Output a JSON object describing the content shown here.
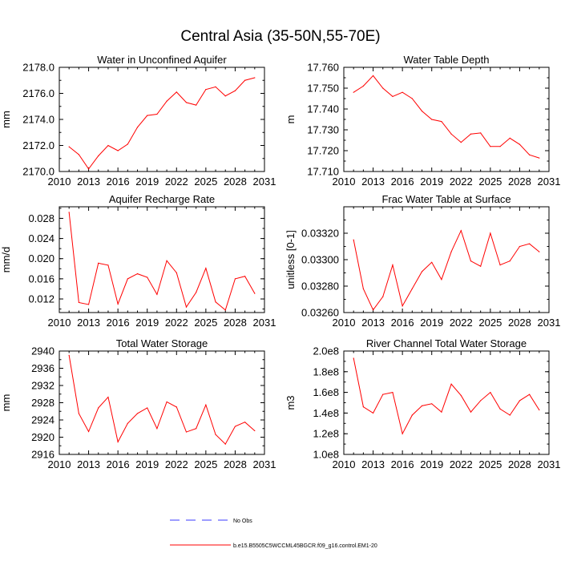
{
  "suptitle": "Central Asia (35-50N,55-70E)",
  "legend": [
    {
      "label": "No Obs",
      "style": "dashed",
      "color": "#3b3bff"
    },
    {
      "label": "b.e15.B5505C5WCCML45BGCR.f09_g16.control.EM1-20",
      "style": "solid",
      "color": "#ff0000"
    }
  ],
  "chart_data": [
    {
      "type": "line",
      "title": "Water in Unconfined Aquifer",
      "ylabel": "mm",
      "xlim": [
        2010,
        2031
      ],
      "xticks": [
        "2010",
        "2013",
        "2016",
        "2019",
        "2022",
        "2025",
        "2028",
        "2031"
      ],
      "ylim": [
        2170,
        2178
      ],
      "yticks": [
        "2170.0",
        "2172.0",
        "2174.0",
        "2176.0",
        "2178.0"
      ],
      "x": [
        2011,
        2012,
        2013,
        2014,
        2015,
        2016,
        2017,
        2018,
        2019,
        2020,
        2021,
        2022,
        2023,
        2024,
        2025,
        2026,
        2027,
        2028,
        2029,
        2030
      ],
      "series": [
        {
          "color": "#ff0000",
          "values": [
            2171.9,
            2171.3,
            2170.2,
            2171.2,
            2172.0,
            2171.6,
            2172.1,
            2173.4,
            2174.3,
            2174.4,
            2175.4,
            2176.1,
            2175.3,
            2175.1,
            2176.3,
            2176.5,
            2175.8,
            2176.2,
            2177.0,
            2177.2
          ]
        }
      ]
    },
    {
      "type": "line",
      "title": "Water Table Depth",
      "ylabel": "m",
      "xlim": [
        2010,
        2031
      ],
      "xticks": [
        "2010",
        "2013",
        "2016",
        "2019",
        "2022",
        "2025",
        "2028",
        "2031"
      ],
      "ylim": [
        17.71,
        17.76
      ],
      "yticks": [
        "17.710",
        "17.720",
        "17.730",
        "17.740",
        "17.750",
        "17.760"
      ],
      "x": [
        2011,
        2012,
        2013,
        2014,
        2015,
        2016,
        2017,
        2018,
        2019,
        2020,
        2021,
        2022,
        2023,
        2024,
        2025,
        2026,
        2027,
        2028,
        2029,
        2030
      ],
      "series": [
        {
          "color": "#ff0000",
          "values": [
            17.748,
            17.751,
            17.756,
            17.75,
            17.746,
            17.748,
            17.745,
            17.739,
            17.735,
            17.734,
            17.728,
            17.724,
            17.728,
            17.7285,
            17.722,
            17.722,
            17.726,
            17.723,
            17.718,
            17.7165
          ]
        }
      ]
    },
    {
      "type": "line",
      "title": "Aquifer Recharge Rate",
      "ylabel": "mm/d",
      "xlim": [
        2010,
        2031
      ],
      "xticks": [
        "2010",
        "2013",
        "2016",
        "2019",
        "2022",
        "2025",
        "2028",
        "2031"
      ],
      "ylim": [
        0.0093,
        0.0303
      ],
      "yticks": [
        "0.012",
        "0.016",
        "0.020",
        "0.024",
        "0.028"
      ],
      "ytick_values": [
        0.012,
        0.016,
        0.02,
        0.024,
        0.028
      ],
      "x": [
        2011,
        2012,
        2013,
        2014,
        2015,
        2016,
        2017,
        2018,
        2019,
        2020,
        2021,
        2022,
        2023,
        2024,
        2025,
        2026,
        2027,
        2028,
        2029,
        2030
      ],
      "series": [
        {
          "color": "#ff0000",
          "values": [
            0.0292,
            0.0113,
            0.0109,
            0.0191,
            0.0187,
            0.011,
            0.016,
            0.017,
            0.0163,
            0.0129,
            0.0196,
            0.0172,
            0.0104,
            0.0133,
            0.0181,
            0.0114,
            0.0098,
            0.016,
            0.0165,
            0.0131
          ]
        }
      ]
    },
    {
      "type": "line",
      "title": "Frac Water Table at Surface",
      "ylabel": "unitless [0-1]",
      "xlim": [
        2010,
        2031
      ],
      "xticks": [
        "2010",
        "2013",
        "2016",
        "2019",
        "2022",
        "2025",
        "2028",
        "2031"
      ],
      "ylim": [
        0.0326,
        0.0334
      ],
      "yticks": [
        "0.03260",
        "0.03280",
        "0.03300",
        "0.03320"
      ],
      "ytick_values": [
        0.0326,
        0.0328,
        0.033,
        0.0332
      ],
      "x": [
        2011,
        2012,
        2013,
        2014,
        2015,
        2016,
        2017,
        2018,
        2019,
        2020,
        2021,
        2022,
        2023,
        2024,
        2025,
        2026,
        2027,
        2028,
        2029,
        2030
      ],
      "series": [
        {
          "color": "#ff0000",
          "values": [
            0.03315,
            0.03278,
            0.03262,
            0.03272,
            0.03296,
            0.03265,
            0.03278,
            0.03291,
            0.03298,
            0.03285,
            0.03306,
            0.03322,
            0.03299,
            0.03295,
            0.0332,
            0.03296,
            0.03299,
            0.0331,
            0.03312,
            0.03306
          ]
        }
      ]
    },
    {
      "type": "line",
      "title": "Total Water Storage",
      "ylabel": "mm",
      "xlim": [
        2010,
        2031
      ],
      "xticks": [
        "2010",
        "2013",
        "2016",
        "2019",
        "2022",
        "2025",
        "2028",
        "2031"
      ],
      "ylim": [
        2916,
        2940
      ],
      "yticks": [
        "2916",
        "2920",
        "2924",
        "2928",
        "2932",
        "2936",
        "2940"
      ],
      "x": [
        2011,
        2012,
        2013,
        2014,
        2015,
        2016,
        2017,
        2018,
        2019,
        2020,
        2021,
        2022,
        2023,
        2024,
        2025,
        2026,
        2027,
        2028,
        2029,
        2030
      ],
      "series": [
        {
          "color": "#ff0000",
          "values": [
            2939.0,
            2925.5,
            2921.3,
            2926.8,
            2929.3,
            2918.9,
            2923.2,
            2925.5,
            2926.8,
            2922.0,
            2928.2,
            2927.0,
            2921.2,
            2922.0,
            2927.5,
            2920.6,
            2918.4,
            2922.5,
            2923.5,
            2921.5
          ]
        }
      ]
    },
    {
      "type": "line",
      "title": "River Channel Total Water Storage",
      "ylabel": "m3",
      "xlim": [
        2010,
        2031
      ],
      "xticks": [
        "2010",
        "2013",
        "2016",
        "2019",
        "2022",
        "2025",
        "2028",
        "2031"
      ],
      "ylim": [
        100000000.0,
        200000000.0
      ],
      "yticks": [
        "1.0e8",
        "1.2e8",
        "1.4e8",
        "1.6e8",
        "1.8e8",
        "2.0e8"
      ],
      "ytick_values": [
        100000000.0,
        120000000.0,
        140000000.0,
        160000000.0,
        180000000.0,
        200000000.0
      ],
      "x": [
        2011,
        2012,
        2013,
        2014,
        2015,
        2016,
        2017,
        2018,
        2019,
        2020,
        2021,
        2022,
        2023,
        2024,
        2025,
        2026,
        2027,
        2028,
        2029,
        2030
      ],
      "series": [
        {
          "color": "#ff0000",
          "values": [
            193000000.0,
            146000000.0,
            140000000.0,
            158000000.0,
            160000000.0,
            120000000.0,
            138000000.0,
            147000000.0,
            149000000.0,
            141000000.0,
            168000000.0,
            157000000.0,
            141000000.0,
            152000000.0,
            160000000.0,
            144000000.0,
            138000000.0,
            152000000.0,
            158000000.0,
            143000000.0
          ]
        }
      ]
    }
  ]
}
